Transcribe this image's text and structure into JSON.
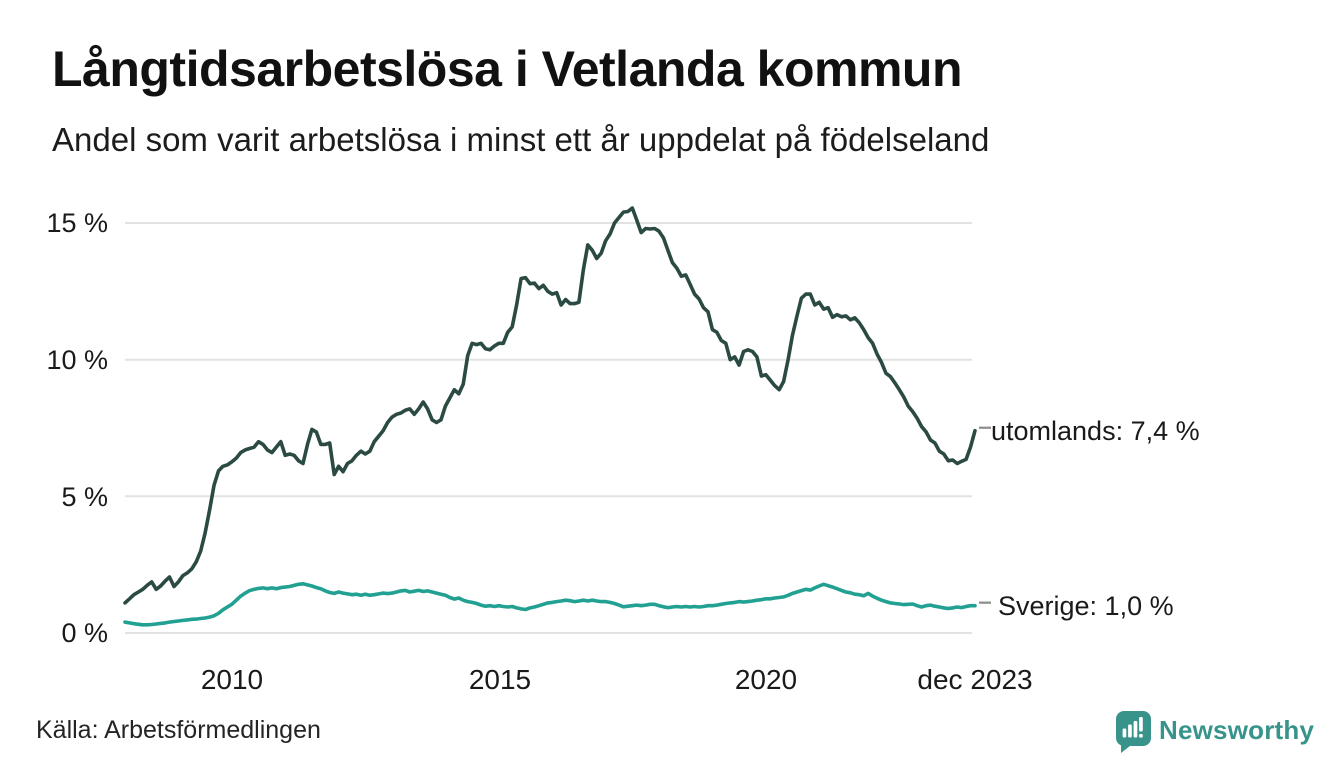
{
  "chart_data": {
    "type": "line",
    "title": "Långtidsarbetslösa i Vetlanda kommun",
    "subtitle": "Andel som varit arbetslösa i minst ett år uppdelat på födelseland",
    "unit": "%",
    "frequency": "monthly",
    "x_start": "jan 2008",
    "x_end": "dec 2023",
    "ylim": [
      0,
      16.5
    ],
    "grid": "horizontal",
    "legend_position": "end-of-line",
    "y_ticks": [
      {
        "value": 0,
        "label": "0 %"
      },
      {
        "value": 5,
        "label": "5 %"
      },
      {
        "value": 10,
        "label": "10 %"
      },
      {
        "value": 15,
        "label": "15 %"
      }
    ],
    "x_ticks": [
      {
        "year": 2010,
        "label": "2010"
      },
      {
        "year": 2015,
        "label": "2015"
      },
      {
        "year": 2020,
        "label": "2020"
      },
      {
        "year": 2023.92,
        "label": "dec 2023"
      }
    ],
    "style": {
      "grid_color": "#e2e2e2",
      "dash_color": "#8c8c8c",
      "text_color": "#1a1a1a",
      "brand_color": "#38938b"
    },
    "series": [
      {
        "name": "utomlands",
        "end_label": "utomlands: 7,4 %",
        "last_value_label": "7,4 %",
        "color": "#2b4a43",
        "values": [
          1.1,
          1.25,
          1.4,
          1.5,
          1.6,
          1.75,
          1.87,
          1.6,
          1.72,
          1.9,
          2.05,
          1.7,
          1.87,
          2.1,
          2.2,
          2.35,
          2.6,
          3.0,
          3.66,
          4.5,
          5.4,
          5.93,
          6.1,
          6.15,
          6.26,
          6.4,
          6.6,
          6.7,
          6.75,
          6.8,
          7.0,
          6.9,
          6.7,
          6.6,
          6.8,
          7.0,
          6.5,
          6.55,
          6.5,
          6.3,
          6.2,
          6.9,
          7.45,
          7.35,
          6.9,
          6.9,
          6.95,
          5.8,
          6.1,
          5.9,
          6.2,
          6.3,
          6.5,
          6.65,
          6.55,
          6.65,
          7.0,
          7.2,
          7.4,
          7.7,
          7.9,
          8.0,
          8.05,
          8.15,
          8.2,
          8.0,
          8.2,
          8.45,
          8.2,
          7.8,
          7.7,
          7.8,
          8.3,
          8.6,
          8.9,
          8.75,
          9.1,
          10.15,
          10.6,
          10.55,
          10.6,
          10.4,
          10.36,
          10.5,
          10.6,
          10.6,
          11.0,
          11.2,
          12.0,
          12.97,
          13.0,
          12.78,
          12.8,
          12.6,
          12.72,
          12.5,
          12.4,
          12.45,
          12.0,
          12.2,
          12.05,
          12.05,
          12.1,
          13.3,
          14.2,
          14.0,
          13.7,
          13.9,
          14.35,
          14.6,
          15.0,
          15.2,
          15.4,
          15.42,
          15.55,
          15.1,
          14.65,
          14.8,
          14.78,
          14.8,
          14.7,
          14.45,
          14.0,
          13.55,
          13.35,
          13.05,
          13.1,
          12.75,
          12.4,
          12.22,
          11.9,
          11.75,
          11.1,
          11.0,
          10.7,
          10.6,
          10.0,
          10.1,
          9.8,
          10.3,
          10.36,
          10.3,
          10.1,
          9.4,
          9.45,
          9.25,
          9.05,
          8.9,
          9.2,
          10.0,
          10.9,
          11.6,
          12.25,
          12.4,
          12.4,
          12.0,
          12.1,
          11.85,
          11.9,
          11.55,
          11.65,
          11.57,
          11.6,
          11.46,
          11.53,
          11.35,
          11.1,
          10.8,
          10.6,
          10.2,
          9.9,
          9.5,
          9.38,
          9.15,
          8.9,
          8.63,
          8.3,
          8.1,
          7.86,
          7.55,
          7.36,
          7.06,
          6.95,
          6.65,
          6.55,
          6.3,
          6.33,
          6.2,
          6.28,
          6.35,
          6.8,
          7.4
        ]
      },
      {
        "name": "Sverige",
        "end_label": "Sverige: 1,0 %",
        "last_value_label": "1,0 %",
        "color": "#22a193",
        "values": [
          0.4,
          0.37,
          0.34,
          0.32,
          0.3,
          0.3,
          0.31,
          0.33,
          0.35,
          0.37,
          0.4,
          0.42,
          0.44,
          0.46,
          0.48,
          0.5,
          0.51,
          0.53,
          0.55,
          0.58,
          0.63,
          0.72,
          0.85,
          0.95,
          1.05,
          1.2,
          1.35,
          1.46,
          1.55,
          1.6,
          1.63,
          1.65,
          1.62,
          1.65,
          1.62,
          1.66,
          1.68,
          1.7,
          1.74,
          1.78,
          1.8,
          1.76,
          1.72,
          1.66,
          1.62,
          1.54,
          1.48,
          1.45,
          1.5,
          1.46,
          1.43,
          1.4,
          1.42,
          1.38,
          1.42,
          1.38,
          1.4,
          1.43,
          1.46,
          1.44,
          1.46,
          1.5,
          1.54,
          1.56,
          1.5,
          1.53,
          1.56,
          1.52,
          1.54,
          1.5,
          1.46,
          1.42,
          1.38,
          1.3,
          1.24,
          1.28,
          1.2,
          1.15,
          1.12,
          1.08,
          1.02,
          0.98,
          1.0,
          0.97,
          1.0,
          0.97,
          0.95,
          0.97,
          0.92,
          0.88,
          0.86,
          0.92,
          0.95,
          1.0,
          1.05,
          1.1,
          1.12,
          1.15,
          1.17,
          1.2,
          1.18,
          1.15,
          1.17,
          1.2,
          1.17,
          1.2,
          1.17,
          1.15,
          1.15,
          1.12,
          1.08,
          1.02,
          0.96,
          0.98,
          1.0,
          1.02,
          1.0,
          1.02,
          1.05,
          1.05,
          1.0,
          0.96,
          0.93,
          0.95,
          0.97,
          0.95,
          0.97,
          0.95,
          0.97,
          0.95,
          0.97,
          1.0,
          1.0,
          1.02,
          1.05,
          1.08,
          1.1,
          1.12,
          1.15,
          1.13,
          1.15,
          1.17,
          1.2,
          1.22,
          1.25,
          1.25,
          1.28,
          1.3,
          1.32,
          1.38,
          1.45,
          1.5,
          1.55,
          1.6,
          1.57,
          1.65,
          1.72,
          1.78,
          1.73,
          1.68,
          1.62,
          1.56,
          1.5,
          1.47,
          1.42,
          1.4,
          1.36,
          1.45,
          1.35,
          1.27,
          1.2,
          1.15,
          1.1,
          1.08,
          1.06,
          1.04,
          1.05,
          1.06,
          1.0,
          0.95,
          1.0,
          1.02,
          0.98,
          0.95,
          0.92,
          0.9,
          0.92,
          0.95,
          0.93,
          0.97,
          1.0,
          1.0
        ]
      }
    ]
  },
  "footer": {
    "source": "Källa: Arbetsförmedlingen",
    "brand": "Newsworthy"
  }
}
